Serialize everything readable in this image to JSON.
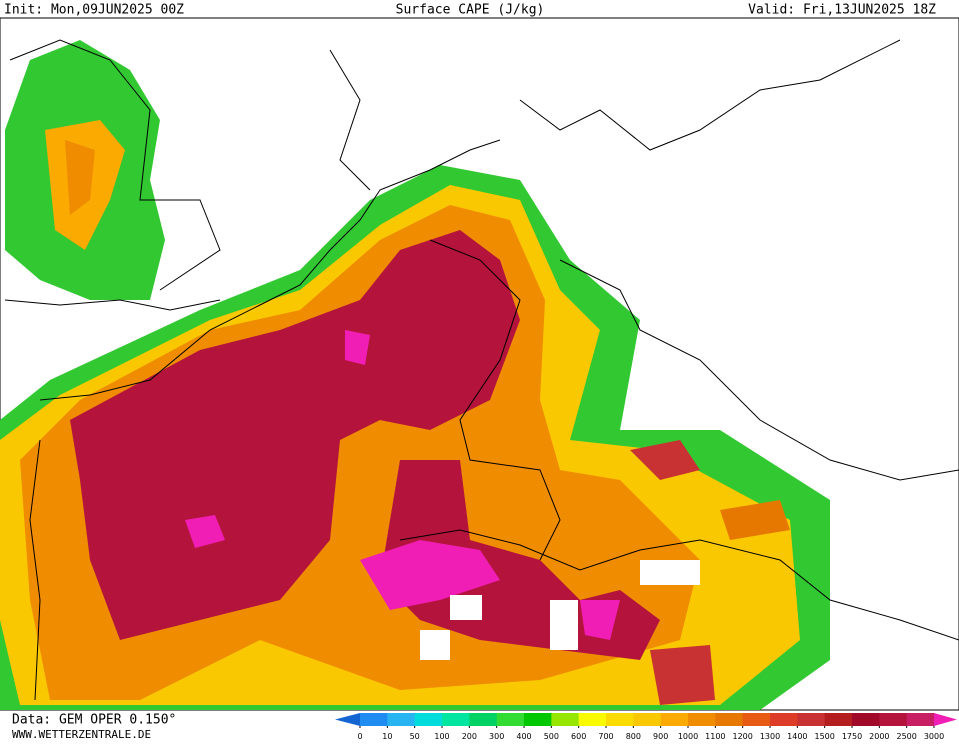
{
  "header": {
    "init": "Init: Mon,09JUN2025 00Z",
    "title": "Surface CAPE (J/kg)",
    "valid": "Valid: Fri,13JUN2025 18Z"
  },
  "footer": {
    "data": "Data: GEM OPER 0.150°",
    "site": "WWW.WETTERZENTRALE.DE"
  },
  "legend": {
    "ticks": [
      0,
      10,
      50,
      100,
      200,
      300,
      400,
      500,
      600,
      700,
      800,
      900,
      1000,
      1100,
      1200,
      1300,
      1400,
      1500,
      1750,
      2000,
      2500,
      3000
    ],
    "colors": [
      "#1464d2",
      "#1e8cf0",
      "#28b4f0",
      "#00dcdc",
      "#00e6a0",
      "#00d264",
      "#32dc32",
      "#00c800",
      "#96e600",
      "#fafa00",
      "#fadc00",
      "#fac800",
      "#faaa00",
      "#f08c00",
      "#e67800",
      "#e65a14",
      "#dc3c28",
      "#c83232",
      "#b41e1e",
      "#a00a28",
      "#b4143c",
      "#c81e64",
      "#f01eb4"
    ]
  }
}
